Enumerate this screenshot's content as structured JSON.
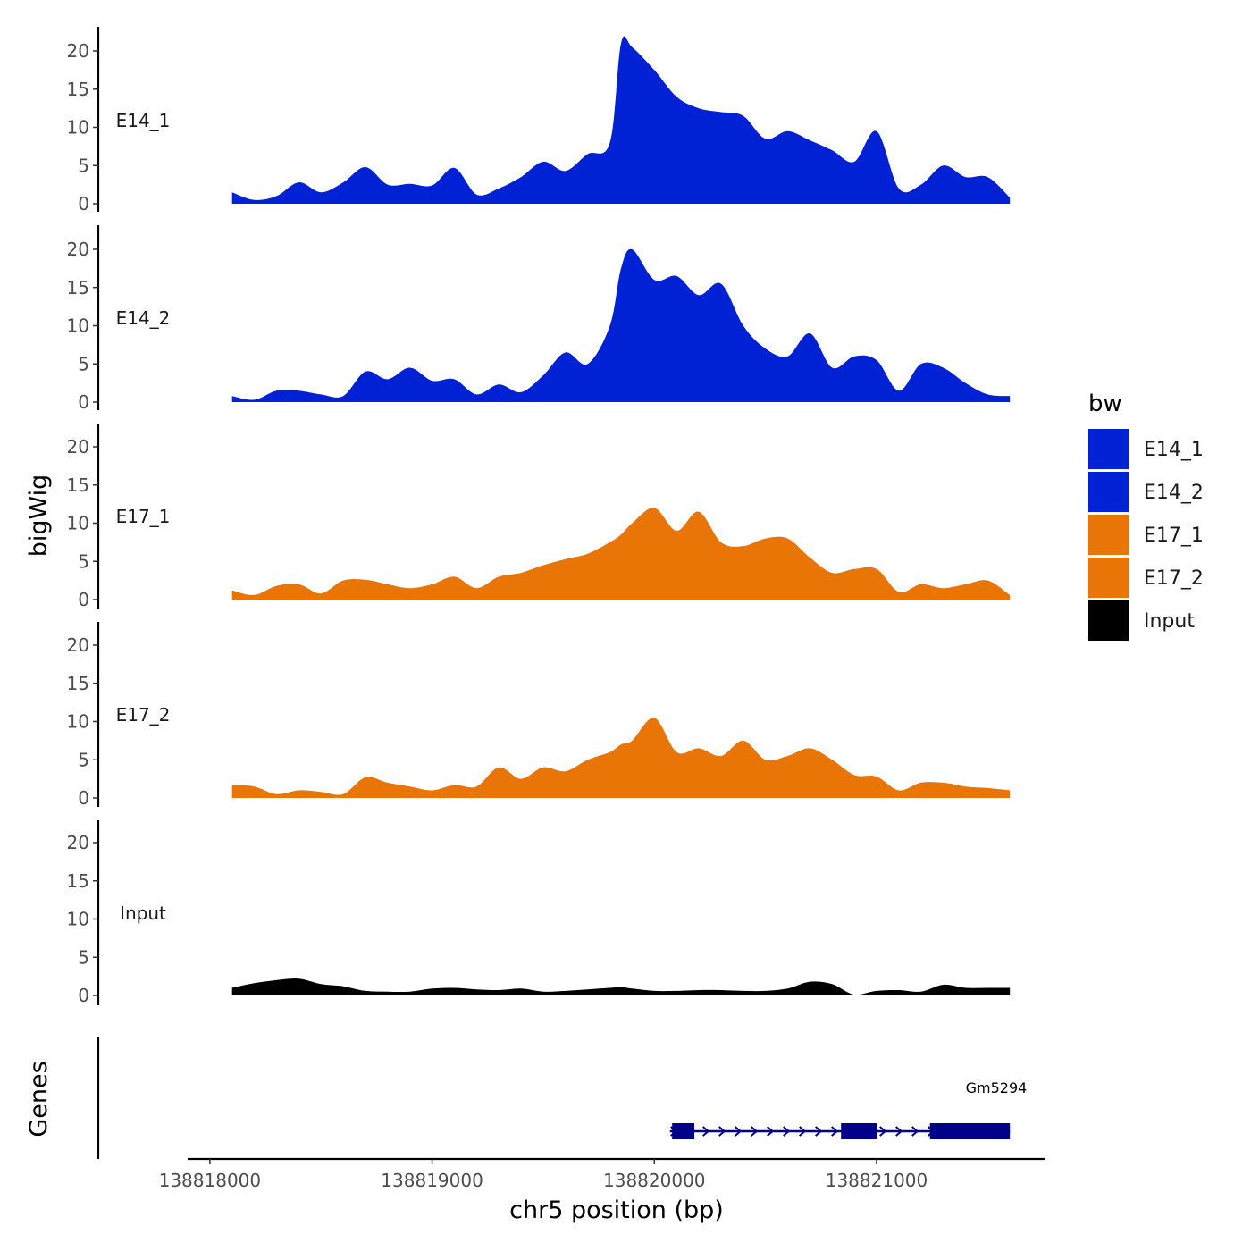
{
  "chart_data": {
    "type": "area",
    "ylabel": "bigWig",
    "genes_label": "Genes",
    "xlabel": "chr5 position (bp)",
    "xlim": [
      138817900,
      138821760
    ],
    "x_ticks": [
      138818000,
      138819000,
      138820000,
      138821000
    ],
    "x_tick_labels": [
      "138818000",
      "138819000",
      "138820000",
      "138821000"
    ],
    "ylim": [
      0,
      23
    ],
    "y_ticks": [
      0,
      5,
      10,
      15,
      20
    ],
    "y_tick_labels": [
      "0",
      "5",
      "10",
      "15",
      "20"
    ],
    "legend": {
      "title": "bw",
      "position": "right",
      "entries": [
        {
          "label": "E14_1",
          "color": "#0022D4"
        },
        {
          "label": "E14_2",
          "color": "#0022D4"
        },
        {
          "label": "E17_1",
          "color": "#E87506"
        },
        {
          "label": "E17_2",
          "color": "#E87506"
        },
        {
          "label": "Input",
          "color": "#000000"
        }
      ]
    },
    "x": [
      138818100,
      138818200,
      138818300,
      138818400,
      138818500,
      138818600,
      138818700,
      138818800,
      138818900,
      138819000,
      138819100,
      138819200,
      138819300,
      138819400,
      138819500,
      138819600,
      138819700,
      138819800,
      138819850,
      138819900,
      138820000,
      138820100,
      138820200,
      138820300,
      138820400,
      138820500,
      138820600,
      138820700,
      138820800,
      138820900,
      138821000,
      138821100,
      138821200,
      138821300,
      138821400,
      138821500,
      138821600
    ],
    "series": [
      {
        "name": "E14_1",
        "color": "#0022D4",
        "values": [
          1.5,
          0.5,
          1.0,
          2.8,
          1.5,
          2.8,
          4.8,
          2.5,
          2.6,
          2.4,
          4.7,
          1.2,
          2.0,
          3.5,
          5.5,
          4.3,
          6.5,
          8.0,
          21.0,
          20.5,
          17.5,
          14.0,
          12.5,
          12.0,
          11.5,
          8.5,
          9.5,
          8.3,
          7.0,
          5.5,
          9.5,
          2.0,
          2.5,
          5.0,
          3.5,
          3.5,
          0.8
        ]
      },
      {
        "name": "E14_2",
        "color": "#0022D4",
        "values": [
          0.8,
          0.3,
          1.5,
          1.5,
          1.0,
          0.8,
          4.0,
          3.0,
          4.5,
          2.8,
          3.0,
          1.0,
          2.3,
          1.3,
          3.5,
          6.5,
          5.0,
          10.0,
          17.5,
          20.0,
          16.0,
          16.5,
          14.0,
          15.5,
          10.0,
          7.0,
          6.0,
          9.0,
          4.5,
          6.0,
          5.5,
          1.5,
          5.0,
          4.5,
          2.5,
          1.0,
          0.8
        ]
      },
      {
        "name": "E17_1",
        "color": "#E87506",
        "values": [
          1.2,
          0.6,
          1.8,
          2.0,
          0.8,
          2.5,
          2.6,
          2.0,
          1.5,
          2.0,
          3.0,
          1.5,
          3.0,
          3.5,
          4.5,
          5.3,
          6.0,
          7.5,
          8.5,
          10.0,
          12.0,
          9.0,
          11.5,
          7.5,
          7.0,
          8.0,
          8.0,
          5.5,
          3.5,
          4.0,
          4.0,
          1.0,
          2.0,
          1.5,
          2.0,
          2.5,
          0.6
        ]
      },
      {
        "name": "E17_2",
        "color": "#E87506",
        "values": [
          1.7,
          1.5,
          0.5,
          1.0,
          0.8,
          0.5,
          2.7,
          2.0,
          1.5,
          1.0,
          1.7,
          1.5,
          4.0,
          2.5,
          4.0,
          3.5,
          5.0,
          6.0,
          7.0,
          7.5,
          10.5,
          6.0,
          6.5,
          5.5,
          7.5,
          5.0,
          5.5,
          6.5,
          5.0,
          3.0,
          2.8,
          1.0,
          2.0,
          2.0,
          1.5,
          1.3,
          1.0
        ]
      },
      {
        "name": "Input",
        "color": "#000000",
        "values": [
          1.0,
          1.6,
          2.0,
          2.2,
          1.5,
          1.2,
          0.6,
          0.5,
          0.5,
          0.9,
          1.0,
          0.8,
          0.7,
          0.9,
          0.5,
          0.6,
          0.8,
          1.0,
          1.1,
          0.9,
          0.6,
          0.6,
          0.7,
          0.7,
          0.6,
          0.6,
          0.9,
          1.8,
          1.5,
          0.1,
          0.6,
          0.7,
          0.5,
          1.4,
          1.0,
          1.0,
          1.0
        ]
      }
    ],
    "gene_track": {
      "gene": "Gm5294",
      "color": "#00008B",
      "start": 138820070,
      "end": 138821600,
      "strand": "+",
      "exons": [
        [
          138820080,
          138820180
        ],
        [
          138820840,
          138821000
        ],
        [
          138821240,
          138821600
        ]
      ]
    }
  }
}
